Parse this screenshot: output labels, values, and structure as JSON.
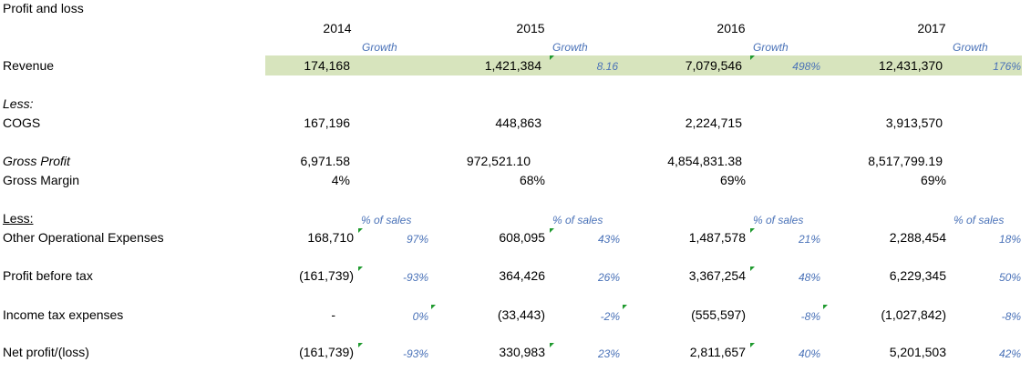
{
  "title": "Profit and loss",
  "years": [
    "2014",
    "2015",
    "2016",
    "2017"
  ],
  "growth_header": "Growth",
  "pct_header": "% of sales",
  "rows": {
    "revenue": {
      "label": "Revenue",
      "values": [
        "174,168",
        "1,421,384",
        "7,079,546",
        "12,431,370"
      ],
      "growth": [
        "8.16",
        "498%",
        "176%"
      ]
    },
    "less1": {
      "label": "Less:"
    },
    "cogs": {
      "label": "COGS",
      "values": [
        "167,196",
        "448,863",
        "2,224,715",
        "3,913,570"
      ]
    },
    "gross_profit": {
      "label": "Gross Profit",
      "values": [
        "6,971.58",
        "972,521.10",
        "4,854,831.38",
        "8,517,799.19"
      ]
    },
    "gross_margin": {
      "label": "Gross Margin",
      "values": [
        "4%",
        "68%",
        "69%",
        "69%"
      ]
    },
    "less2": {
      "label": "Less:"
    },
    "opex": {
      "label": "Other Operational Expenses",
      "values": [
        "168,710",
        "608,095",
        "1,487,578",
        "2,288,454"
      ],
      "pct": [
        "97%",
        "43%",
        "21%",
        "18%"
      ]
    },
    "pbt": {
      "label": "Profit before tax",
      "values": [
        "(161,739)",
        "364,426",
        "3,367,254",
        "6,229,345"
      ],
      "pct": [
        "-93%",
        "26%",
        "48%",
        "50%"
      ]
    },
    "tax": {
      "label": "Income tax expenses",
      "values": [
        "-",
        "(33,443)",
        "(555,597)",
        "(1,027,842)"
      ],
      "pct": [
        "0%",
        "-2%",
        "-8%",
        "-8%"
      ]
    },
    "net": {
      "label": "Net profit/(loss)",
      "values": [
        "(161,739)",
        "330,983",
        "2,811,657",
        "5,201,503"
      ],
      "pct": [
        "-93%",
        "23%",
        "40%",
        "42%"
      ]
    }
  },
  "colors": {
    "highlight": "#d7e4bd",
    "note_blue": "#4a72b8",
    "comment_flag": "#1f9a2e"
  }
}
